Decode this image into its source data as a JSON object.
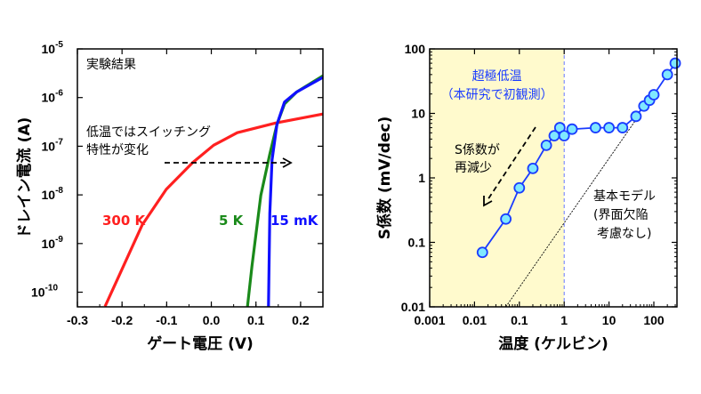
{
  "chart_data": [
    {
      "type": "line",
      "xlabel": "ゲート電圧 (V)",
      "ylabel": "ドレイン電流 (A)",
      "xlim": [
        -0.3,
        0.25
      ],
      "ylim": [
        5e-11,
        1e-05
      ],
      "yscale": "log",
      "xticks": [
        "-0.3",
        "-0.2",
        "-0.1",
        "0.0",
        "0.1",
        "0.2"
      ],
      "yticks": [
        {
          "base": "10",
          "exp": "-5"
        },
        {
          "base": "10",
          "exp": "-6"
        },
        {
          "base": "10",
          "exp": "-7"
        },
        {
          "base": "10",
          "exp": "-8"
        },
        {
          "base": "10",
          "exp": "-9"
        },
        {
          "base": "10",
          "exp": "-10"
        }
      ],
      "annotations": {
        "corner": "実験結果",
        "note_line1": "低温ではスイッチング",
        "note_line2": "特性が変化"
      },
      "series": [
        {
          "name": "300 K",
          "color": "#ff2020",
          "x": [
            -0.238,
            -0.155,
            -0.101,
            -0.042,
            0.005,
            0.058,
            0.144,
            0.25
          ],
          "y": [
            5.1e-11,
            2.4e-09,
            1.3e-08,
            4.6e-08,
            1.05e-07,
            1.9e-07,
            3e-07,
            4.6e-07
          ]
        },
        {
          "name": "5 K",
          "color": "#1a8a1a",
          "x": [
            0.081,
            0.091,
            0.111,
            0.131,
            0.147,
            0.164,
            0.191,
            0.25
          ],
          "y": [
            5.1e-11,
            3.4e-10,
            9.8e-09,
            6.9e-08,
            2.8e-07,
            7.4e-07,
            1.3e-06,
            2.8e-06
          ]
        },
        {
          "name": "15 mK",
          "color": "#1010ff",
          "x": [
            0.128,
            0.131,
            0.136,
            0.147,
            0.164,
            0.191,
            0.25
          ],
          "y": [
            5.1e-11,
            4.2e-09,
            5.2e-08,
            2.8e-07,
            8.1e-07,
            1.3e-06,
            2.6e-06
          ]
        }
      ]
    },
    {
      "type": "scatter",
      "xlabel": "温度 (ケルビン)",
      "ylabel": "S係数 (mV/dec)",
      "xscale": "log",
      "yscale": "log",
      "xlim": [
        0.001,
        300
      ],
      "ylim": [
        0.01,
        100
      ],
      "xticks": [
        "0.001",
        "0.01",
        "0.1",
        "1",
        "10",
        "100"
      ],
      "yticks": [
        "100",
        "10",
        "1",
        "0.1",
        "0.01"
      ],
      "shaded_region": {
        "from": 0.001,
        "to": 1,
        "color": "#fffacd",
        "label_line1": "超極低温",
        "label_line2": "（本研究で初観測）"
      },
      "annotations": {
        "trend_line1": "S係数が",
        "trend_line2": "再減少",
        "model_line1": "基本モデル",
        "model_line2": "(界面欠陥",
        "model_line3": "考慮なし)"
      },
      "series": [
        {
          "name": "",
          "color": "#1a3cff",
          "marker_fill": "#7fe8ff",
          "x": [
            0.015,
            0.05,
            0.1,
            0.2,
            0.4,
            0.6,
            0.8,
            1.0,
            1.5,
            5,
            10,
            20,
            40,
            60,
            80,
            100,
            200,
            300
          ],
          "y": [
            0.07,
            0.23,
            0.7,
            1.4,
            3.2,
            4.5,
            6,
            4.5,
            5.7,
            6,
            6,
            6,
            9,
            13,
            16,
            19.5,
            40,
            60
          ]
        }
      ],
      "model_line": {
        "x": [
          0.05,
          40
        ],
        "y": [
          0.01,
          8
        ]
      }
    }
  ]
}
